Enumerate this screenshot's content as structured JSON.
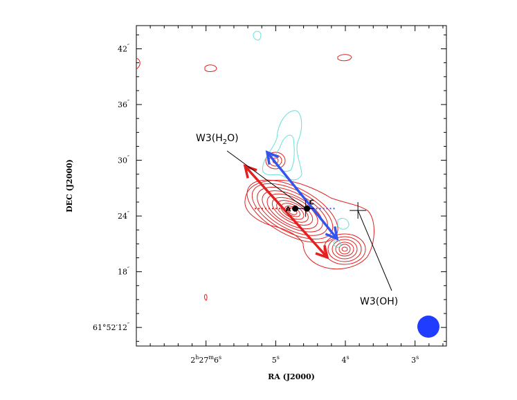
{
  "chart_data": {
    "type": "scatter",
    "xlabel": "RA (J2000)",
    "ylabel": "DEC (J2000)",
    "yticks": [
      {
        "v": 42,
        "s": "42",
        "sup": "″"
      },
      {
        "v": 36,
        "s": "36",
        "sup": "″"
      },
      {
        "v": 30,
        "s": "30",
        "sup": "″"
      },
      {
        "v": 24,
        "s": "24",
        "sup": "″"
      },
      {
        "v": 18,
        "s": "18",
        "sup": "″"
      },
      {
        "v": 12,
        "s": "61°52′12",
        "sup": "″"
      }
    ],
    "xticks": [
      {
        "v": 6,
        "parts": [
          [
            "2",
            "n"
          ],
          [
            "h",
            "s"
          ],
          [
            "27",
            "n"
          ],
          [
            "m",
            "s"
          ],
          [
            "6",
            "n"
          ],
          [
            "s",
            "s"
          ]
        ]
      },
      {
        "v": 5,
        "parts": [
          [
            "5",
            "n"
          ],
          [
            "s",
            "s"
          ]
        ]
      },
      {
        "v": 4,
        "parts": [
          [
            "4",
            "n"
          ],
          [
            "s",
            "s"
          ]
        ]
      },
      {
        "v": 3,
        "parts": [
          [
            "3",
            "n"
          ],
          [
            "s",
            "s"
          ]
        ]
      }
    ],
    "xlim": [
      7.0,
      2.55
    ],
    "ylim": [
      10.0,
      44.5
    ],
    "sources": [
      {
        "name": "A",
        "x": 4.72,
        "y": 24.8
      },
      {
        "name": "C",
        "x": 4.55,
        "y": 24.8
      }
    ],
    "markers": [
      {
        "name": "W3(H2O)",
        "x": 4.57,
        "y": 24.8,
        "label_x": 5.25,
        "label_y": 31.8
      },
      {
        "name": "W3(OH)",
        "x": 3.82,
        "y": 24.6,
        "label_x": 3.0,
        "label_y": 15.0
      }
    ],
    "labels": {
      "h2o_main": "W3(H",
      "h2o_sub": "2",
      "h2o_end": "O)",
      "oh": "W3(OH)"
    },
    "colors": {
      "red": "#e32020",
      "blue": "#3355ee",
      "cyan": "#66e0d8",
      "beam": "#1f3cff"
    }
  }
}
